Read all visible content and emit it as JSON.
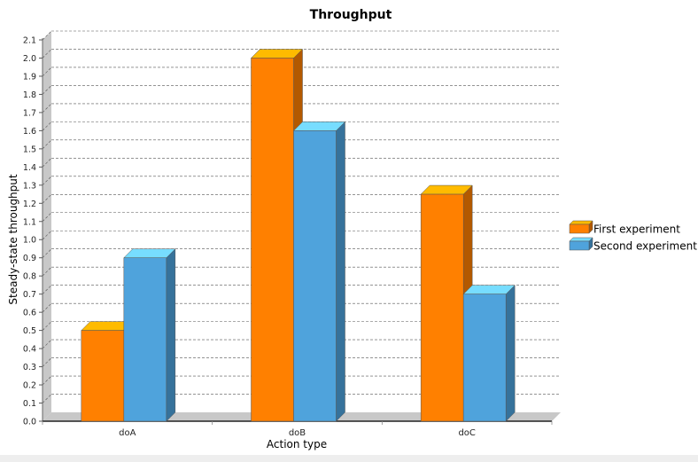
{
  "chart_data": {
    "type": "bar",
    "title": "Throughput",
    "xlabel": "Action type",
    "ylabel": "Steady-state throughput",
    "categories": [
      "doA",
      "doB",
      "doC"
    ],
    "series": [
      {
        "name": "First experiment",
        "values": [
          0.5,
          2.0,
          1.25
        ],
        "color": "#ff8000",
        "top_color": "#ffbb00",
        "side_color": "#b35900"
      },
      {
        "name": "Second experiment",
        "values": [
          0.9,
          1.6,
          0.7
        ],
        "color": "#4fa3dc",
        "top_color": "#77ddff",
        "side_color": "#36729b"
      }
    ],
    "ylim": [
      0,
      2.1
    ],
    "yticks": [
      "0.0",
      "0.1",
      "0.2",
      "0.3",
      "0.4",
      "0.5",
      "0.6",
      "0.7",
      "0.8",
      "0.9",
      "1.0",
      "1.1",
      "1.2",
      "1.3",
      "1.4",
      "1.5",
      "1.6",
      "1.7",
      "1.8",
      "1.9",
      "2.0",
      "2.1"
    ],
    "grid": true,
    "legend_position": "right",
    "style": "3d"
  }
}
